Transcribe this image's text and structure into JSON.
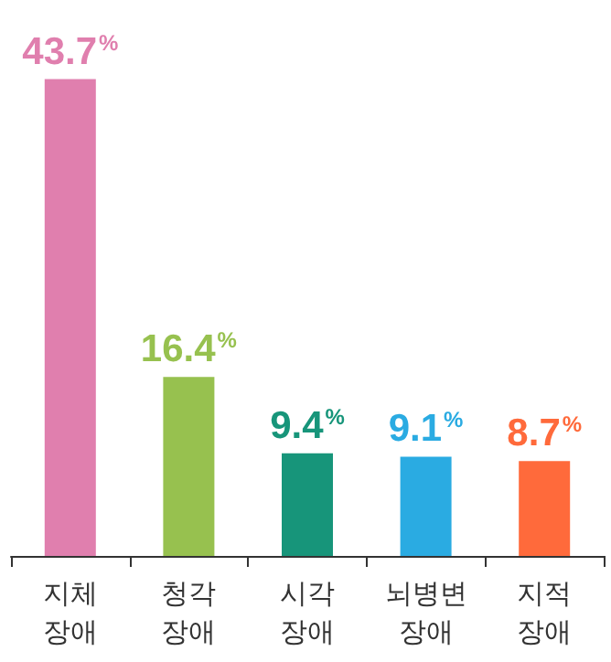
{
  "chart_data": {
    "type": "bar",
    "categories": [
      "지체\n장애",
      "청각\n장애",
      "시각\n장애",
      "뇌병변\n장애",
      "지적\n장애"
    ],
    "values": [
      43.7,
      16.4,
      9.4,
      9.1,
      8.7
    ],
    "colors": [
      "#e07fae",
      "#97c14f",
      "#17957a",
      "#2aabe2",
      "#ff6a3b"
    ],
    "value_labels": [
      "43.7$^{%}$",
      "16.4$^{%}$",
      "9.4$^{%}$",
      "9.1$^{%}$",
      "8.7$^{%}$"
    ],
    "grid": false
  }
}
